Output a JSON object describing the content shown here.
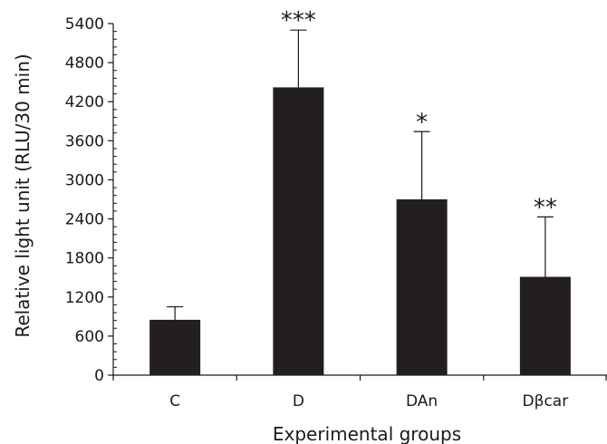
{
  "chart_data": {
    "type": "bar",
    "xlabel": "Experimental groups",
    "ylabel": "Relative light unit (RLU/30 min)",
    "ylim": [
      0,
      5400
    ],
    "yticks": [
      0,
      600,
      1200,
      1800,
      2400,
      3000,
      3600,
      4200,
      4800,
      5400
    ],
    "ytick_labels": [
      "0",
      "600",
      "1200",
      "1800",
      "2400",
      "3000",
      "3600",
      "4200",
      "4800",
      "5400"
    ],
    "categories": [
      "C",
      "D",
      "DAn",
      "Dβcar"
    ],
    "values": [
      850,
      4420,
      2700,
      1510
    ],
    "error_upper": [
      1050,
      5300,
      3740,
      2430
    ],
    "significance": [
      "",
      "***",
      "*",
      "**"
    ],
    "bar_color": "#231f20",
    "grid": false,
    "legend": "none"
  }
}
